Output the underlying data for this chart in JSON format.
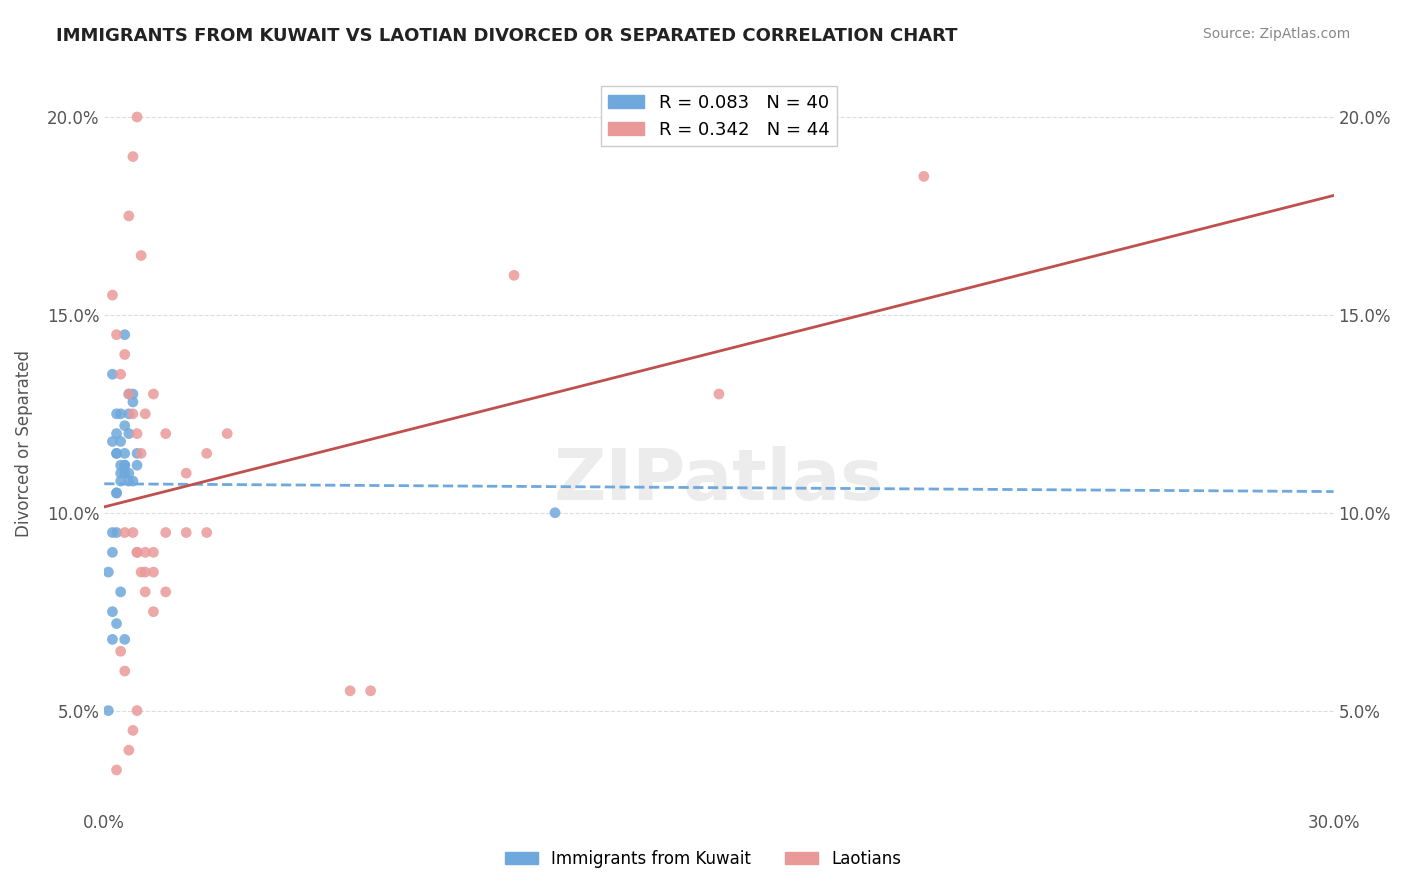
{
  "title": "IMMIGRANTS FROM KUWAIT VS LAOTIAN DIVORCED OR SEPARATED CORRELATION CHART",
  "source": "Source: ZipAtlas.com",
  "xlabel": "",
  "ylabel": "Divorced or Separated",
  "watermark": "ZIPatlas",
  "legend_entry1": "R = 0.083   N = 40",
  "legend_entry2": "R = 0.342   N = 44",
  "legend_label1": "Immigrants from Kuwait",
  "legend_label2": "Laotians",
  "color1": "#6fa8dc",
  "color2": "#ea9999",
  "trendline1_color": "#6fa8dc",
  "trendline2_color": "#ea9999",
  "xmin": 0.0,
  "xmax": 0.3,
  "ymin": 0.025,
  "ymax": 0.21,
  "yticks": [
    0.05,
    0.1,
    0.15,
    0.2
  ],
  "ytick_labels": [
    "5.0%",
    "10.0%",
    "15.0%",
    "20.0%"
  ],
  "xticks": [
    0.0,
    0.3
  ],
  "xtick_labels": [
    "0.0%",
    "30.0%"
  ],
  "scatter1_x": [
    0.005,
    0.002,
    0.003,
    0.007,
    0.006,
    0.008,
    0.004,
    0.006,
    0.005,
    0.003,
    0.004,
    0.005,
    0.006,
    0.007,
    0.003,
    0.008,
    0.006,
    0.005,
    0.004,
    0.003,
    0.002,
    0.003,
    0.004,
    0.005,
    0.006,
    0.005,
    0.004,
    0.007,
    0.003,
    0.002,
    0.001,
    0.002,
    0.003,
    0.004,
    0.002,
    0.003,
    0.005,
    0.002,
    0.001,
    0.11
  ],
  "scatter1_y": [
    0.145,
    0.135,
    0.125,
    0.13,
    0.12,
    0.115,
    0.125,
    0.13,
    0.115,
    0.12,
    0.118,
    0.122,
    0.125,
    0.128,
    0.115,
    0.112,
    0.11,
    0.112,
    0.108,
    0.105,
    0.118,
    0.115,
    0.112,
    0.11,
    0.108,
    0.112,
    0.11,
    0.108,
    0.105,
    0.095,
    0.085,
    0.09,
    0.095,
    0.08,
    0.075,
    0.072,
    0.068,
    0.068,
    0.05,
    0.1
  ],
  "scatter2_x": [
    0.002,
    0.003,
    0.004,
    0.005,
    0.006,
    0.007,
    0.008,
    0.009,
    0.01,
    0.012,
    0.015,
    0.02,
    0.025,
    0.03,
    0.005,
    0.008,
    0.01,
    0.012,
    0.015,
    0.006,
    0.008,
    0.007,
    0.009,
    0.01,
    0.012,
    0.005,
    0.004,
    0.003,
    0.006,
    0.007,
    0.008,
    0.1,
    0.15,
    0.2,
    0.015,
    0.02,
    0.025,
    0.06,
    0.065,
    0.007,
    0.008,
    0.009,
    0.01,
    0.012
  ],
  "scatter2_y": [
    0.155,
    0.145,
    0.135,
    0.14,
    0.13,
    0.125,
    0.12,
    0.115,
    0.125,
    0.13,
    0.12,
    0.11,
    0.115,
    0.12,
    0.095,
    0.09,
    0.085,
    0.09,
    0.08,
    0.175,
    0.2,
    0.19,
    0.165,
    0.09,
    0.085,
    0.06,
    0.065,
    0.035,
    0.04,
    0.045,
    0.05,
    0.16,
    0.13,
    0.185,
    0.095,
    0.095,
    0.095,
    0.055,
    0.055,
    0.095,
    0.09,
    0.085,
    0.08,
    0.075
  ]
}
